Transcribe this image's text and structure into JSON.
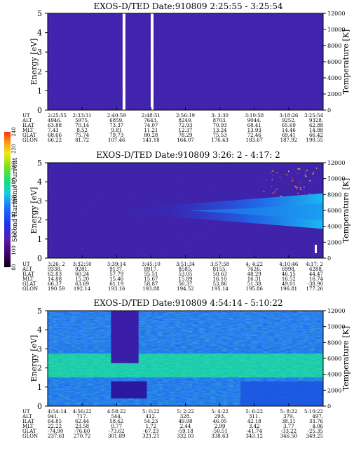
{
  "chart_data": [
    {
      "type": "heatmap",
      "title": "EXOS-D/TED   Date:910809   2:25:55 - 3:25:54",
      "ylabel": "Energy [eV]",
      "y2label": "Temperature [K]",
      "yticks": [
        "0",
        "1",
        "2",
        "3",
        "4",
        "5"
      ],
      "y2ticks": [
        "0",
        "2000",
        "4000",
        "6000",
        "8000",
        "10000",
        "12000"
      ],
      "ylim": [
        0,
        5
      ],
      "y2lim": [
        0,
        12000
      ],
      "aux_rows": [
        "UT",
        "ALT",
        "ILAT",
        "MLT",
        "GLAT",
        "GLON"
      ],
      "aux_cols": [
        [
          "2:25:55",
          "2:33:31",
          "2:40:59",
          "2:48:51",
          "2:56:19",
          "3: 3:30",
          "3:10:58",
          "3:18:26",
          "3:25:54"
        ],
        [
          "4946.",
          "5975.",
          "6859.",
          "7643.",
          "8249.",
          "8703.",
          "9044.",
          "9252.",
          "9328."
        ],
        [
          "63.88",
          "70.14",
          "73.37",
          "74.07",
          "72.93",
          "70.93",
          "68.41",
          "65.69",
          "62.88"
        ],
        [
          "7.43",
          "8.52",
          "9.81",
          "11.21",
          "12.37",
          "13.24",
          "13.93",
          "14.46",
          "14.88"
        ],
        [
          "68.66",
          "75.74",
          "79.73",
          "80.28",
          "78.29",
          "75.53",
          "72.46",
          "69.41",
          "66.42"
        ],
        [
          "66.22",
          "81.72",
          "107.46",
          "141.18",
          "164.07",
          "176.43",
          "183.67",
          "187.92",
          "190.55"
        ]
      ],
      "data_gaps_ut": [
        "2:40:59",
        "2:48:51"
      ],
      "background_level": "low (violet)"
    },
    {
      "type": "heatmap",
      "title": "EXOS-D/TED   Date:910809   3:26: 2 - 4:17: 2",
      "ylabel": "Energy [eV]",
      "y2label": "Temperature [K]",
      "yticks": [
        "0",
        "1",
        "2",
        "3",
        "4",
        "5"
      ],
      "y2ticks": [
        "0",
        "2000",
        "4000",
        "6000",
        "8000",
        "10000",
        "12000"
      ],
      "ylim": [
        0,
        5
      ],
      "y2lim": [
        0,
        12000
      ],
      "aux_rows": [
        "UT",
        "ALT",
        "ILAT",
        "MLT",
        "GLAT",
        "GLON"
      ],
      "aux_cols": [
        [
          "3:26: 2",
          "3:32:50",
          "3:39:14",
          "3:45:10",
          "3:51:34",
          "3:57:58",
          "4: 4:22",
          "4:10:46",
          "4:17: 2"
        ],
        [
          "9338.",
          "9281.",
          "9137.",
          "8917.",
          "8585.",
          "8155.",
          "7626.",
          "6998.",
          "6288."
        ],
        [
          "62.83",
          "60.24",
          "57.79",
          "55.51",
          "53.05",
          "50.63",
          "48.29",
          "46.15",
          "44.47"
        ],
        [
          "14.88",
          "15.20",
          "15.46",
          "15.67",
          "15.89",
          "16.10",
          "16.31",
          "16.52",
          "16.74"
        ],
        [
          "66.37",
          "63.69",
          "61.19",
          "58.87",
          "56.37",
          "53.86",
          "51.38",
          "49.01",
          "-38.90"
        ],
        [
          "190.59",
          "192.14",
          "193.16",
          "193.88",
          "194.52",
          "195.14",
          "195.86",
          "196.81",
          "177.26"
        ]
      ],
      "feature": "band near 2-3 eV increasing toward end"
    },
    {
      "type": "heatmap",
      "title": "EXOS-D/TED   Date:910809   4:54:14 - 5:10:22",
      "ylabel": "Energy [eV]",
      "y2label": "Temperature [K]",
      "yticks": [
        "0",
        "1",
        "2",
        "3",
        "4",
        "5"
      ],
      "y2ticks": [
        "0",
        "2000",
        "4000",
        "6000",
        "8000",
        "10000",
        "12000"
      ],
      "ylim": [
        0,
        5
      ],
      "y2lim": [
        0,
        12000
      ],
      "aux_rows": [
        "UT",
        "ALT",
        "ILAT",
        "MLT",
        "GLAT",
        "GLON"
      ],
      "aux_cols": [
        [
          "4:54:14",
          "4:56:22",
          "4:58:22",
          "5: 0:22",
          "5: 2:22",
          "5: 4:22",
          "5: 6:22",
          "5: 8:22",
          "5:10:22"
        ],
        [
          "941.",
          "717.",
          "544.",
          "412.",
          "328.",
          "293.",
          "311.",
          "379.",
          "497."
        ],
        [
          "64.85",
          "62.44",
          "58.62",
          "54.23",
          "49.98",
          "46.05",
          "42.18",
          "38.11",
          "33.76"
        ],
        [
          "22.22",
          "23.58",
          "0.77",
          "1.72",
          "2.44",
          "2.99",
          "3.42",
          "3.77",
          "4.06"
        ],
        [
          "-74.90",
          "-76.60",
          "-73.62",
          "-67.23",
          "-59.18",
          "-50.51",
          "-41.74",
          "-33.22",
          "-25.35"
        ],
        [
          "237.61",
          "270.72",
          "301.89",
          "321.21",
          "332.03",
          "338.63",
          "343.12",
          "346.50",
          "349.25"
        ]
      ],
      "background_level": "high (cyan/green)"
    }
  ],
  "colorbar": {
    "label": "Second Harmonic Current",
    "ticks": [
      "80",
      "100",
      "120",
      "140",
      "160",
      "180",
      "200",
      "220",
      "240"
    ],
    "range": [
      80,
      240
    ],
    "colors": [
      "#000000",
      "#3a0060",
      "#5a1aa8",
      "#2233ee",
      "#1a6fff",
      "#19c8e6",
      "#12e07a",
      "#7ae01a",
      "#f0e814",
      "#ff9a10",
      "#ff2a12"
    ]
  }
}
